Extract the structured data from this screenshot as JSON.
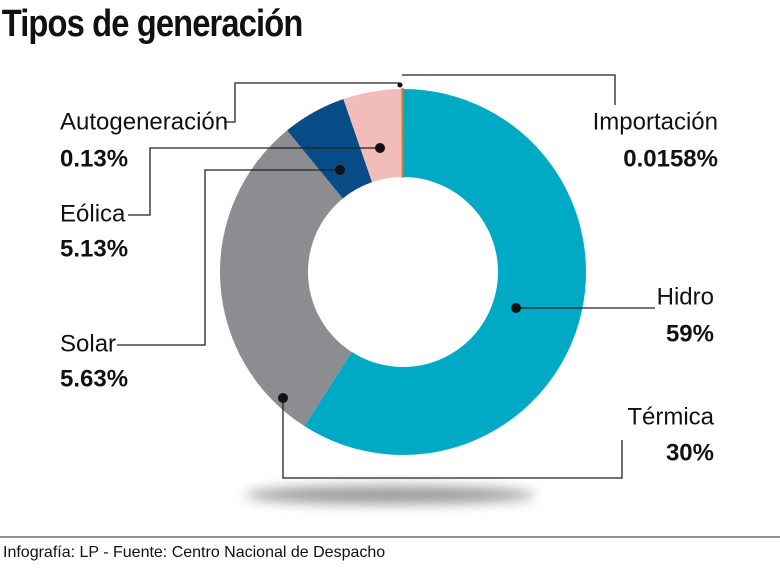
{
  "chart_data": {
    "type": "donut",
    "title": "Tipos de generación",
    "categories": [
      "Hidro",
      "Térmica",
      "Solar",
      "Eólica",
      "Autogeneración",
      "Importación"
    ],
    "values": [
      59,
      30,
      5.63,
      5.13,
      0.13,
      0.0158
    ],
    "value_labels": [
      "59%",
      "30%",
      "5.63%",
      "5.13%",
      "0.13%",
      "0.0158%"
    ],
    "colors": [
      "#00a9c4",
      "#8c8d91",
      "#074c86",
      "#f1bcba",
      "#e89a8f",
      "#c8761e"
    ],
    "source": "Infografía: LP - Fuente: Centro Nacional de Despacho"
  }
}
